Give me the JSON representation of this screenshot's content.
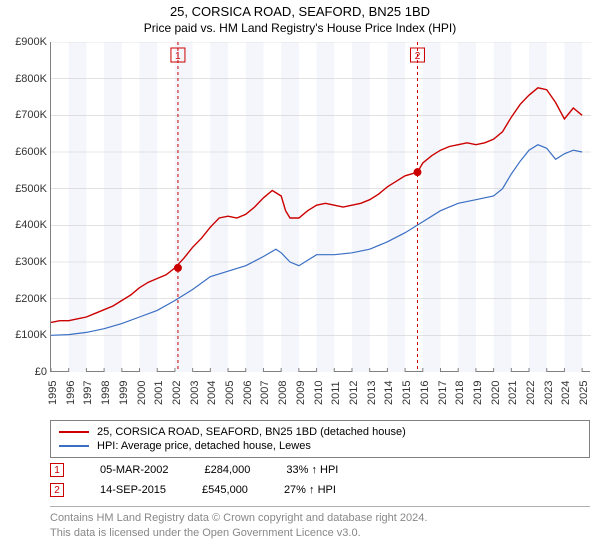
{
  "title": "25, CORSICA ROAD, SEAFORD, BN25 1BD",
  "subtitle": "Price paid vs. HM Land Registry's House Price Index (HPI)",
  "chart": {
    "type": "line",
    "background_color": "#ffffff",
    "alt_column_color": "#f4f6fb",
    "grid_color": "#d0d0d0",
    "axis_color": "#808080",
    "ylim": [
      0,
      900000
    ],
    "ytick_step": 100000,
    "ylabels": [
      "£0",
      "£100K",
      "£200K",
      "£300K",
      "£400K",
      "£500K",
      "£600K",
      "£700K",
      "£800K",
      "£900K"
    ],
    "xlim": [
      1995,
      2025.5
    ],
    "xticks": [
      1995,
      1996,
      1997,
      1998,
      1999,
      2000,
      2001,
      2002,
      2003,
      2004,
      2005,
      2006,
      2007,
      2008,
      2009,
      2010,
      2011,
      2012,
      2013,
      2014,
      2015,
      2016,
      2017,
      2018,
      2019,
      2020,
      2021,
      2022,
      2023,
      2024,
      2025
    ],
    "label_fontsize": 11,
    "title_fontsize": 13,
    "series": [
      {
        "name": "property",
        "label": "25, CORSICA ROAD, SEAFORD, BN25 1BD (detached house)",
        "color": "#cc0000",
        "line_width": 1.4,
        "data": [
          [
            1995,
            135000
          ],
          [
            1995.5,
            140000
          ],
          [
            1996,
            140000
          ],
          [
            1996.5,
            145000
          ],
          [
            1997,
            150000
          ],
          [
            1997.5,
            160000
          ],
          [
            1998,
            170000
          ],
          [
            1998.5,
            180000
          ],
          [
            1999,
            195000
          ],
          [
            1999.5,
            210000
          ],
          [
            2000,
            230000
          ],
          [
            2000.5,
            245000
          ],
          [
            2001,
            255000
          ],
          [
            2001.5,
            265000
          ],
          [
            2002,
            284000
          ],
          [
            2002.5,
            310000
          ],
          [
            2003,
            340000
          ],
          [
            2003.5,
            365000
          ],
          [
            2004,
            395000
          ],
          [
            2004.5,
            420000
          ],
          [
            2005,
            425000
          ],
          [
            2005.5,
            420000
          ],
          [
            2006,
            430000
          ],
          [
            2006.5,
            450000
          ],
          [
            2007,
            475000
          ],
          [
            2007.5,
            495000
          ],
          [
            2008,
            480000
          ],
          [
            2008.25,
            440000
          ],
          [
            2008.5,
            420000
          ],
          [
            2009,
            420000
          ],
          [
            2009.5,
            440000
          ],
          [
            2010,
            455000
          ],
          [
            2010.5,
            460000
          ],
          [
            2011,
            455000
          ],
          [
            2011.5,
            450000
          ],
          [
            2012,
            455000
          ],
          [
            2012.5,
            460000
          ],
          [
            2013,
            470000
          ],
          [
            2013.5,
            485000
          ],
          [
            2014,
            505000
          ],
          [
            2014.5,
            520000
          ],
          [
            2015,
            535000
          ],
          [
            2015.7,
            545000
          ],
          [
            2016,
            570000
          ],
          [
            2016.5,
            590000
          ],
          [
            2017,
            605000
          ],
          [
            2017.5,
            615000
          ],
          [
            2018,
            620000
          ],
          [
            2018.5,
            625000
          ],
          [
            2019,
            620000
          ],
          [
            2019.5,
            625000
          ],
          [
            2020,
            635000
          ],
          [
            2020.5,
            655000
          ],
          [
            2021,
            695000
          ],
          [
            2021.5,
            730000
          ],
          [
            2022,
            755000
          ],
          [
            2022.5,
            775000
          ],
          [
            2023,
            770000
          ],
          [
            2023.5,
            735000
          ],
          [
            2024,
            690000
          ],
          [
            2024.5,
            720000
          ],
          [
            2025,
            700000
          ]
        ]
      },
      {
        "name": "hpi",
        "label": "HPI: Average price, detached house, Lewes",
        "color": "#3a6fc4",
        "line_width": 1.2,
        "data": [
          [
            1995,
            100000
          ],
          [
            1996,
            102000
          ],
          [
            1997,
            108000
          ],
          [
            1998,
            118000
          ],
          [
            1999,
            132000
          ],
          [
            2000,
            150000
          ],
          [
            2001,
            168000
          ],
          [
            2002,
            195000
          ],
          [
            2003,
            225000
          ],
          [
            2004,
            260000
          ],
          [
            2005,
            275000
          ],
          [
            2006,
            290000
          ],
          [
            2007,
            315000
          ],
          [
            2007.7,
            335000
          ],
          [
            2008,
            325000
          ],
          [
            2008.5,
            300000
          ],
          [
            2009,
            290000
          ],
          [
            2009.5,
            305000
          ],
          [
            2010,
            320000
          ],
          [
            2011,
            320000
          ],
          [
            2012,
            325000
          ],
          [
            2013,
            335000
          ],
          [
            2014,
            355000
          ],
          [
            2015,
            380000
          ],
          [
            2016,
            410000
          ],
          [
            2017,
            440000
          ],
          [
            2018,
            460000
          ],
          [
            2019,
            470000
          ],
          [
            2020,
            480000
          ],
          [
            2020.5,
            500000
          ],
          [
            2021,
            540000
          ],
          [
            2021.5,
            575000
          ],
          [
            2022,
            605000
          ],
          [
            2022.5,
            620000
          ],
          [
            2023,
            610000
          ],
          [
            2023.5,
            580000
          ],
          [
            2024,
            595000
          ],
          [
            2024.5,
            605000
          ],
          [
            2025,
            600000
          ]
        ]
      }
    ],
    "markers": [
      {
        "id": "1",
        "year": 2002.17,
        "value": 284000,
        "color": "#cc0000",
        "label_y_offset": -40
      },
      {
        "id": "2",
        "year": 2015.7,
        "value": 545000,
        "color": "#cc0000",
        "label_y_offset": -35
      }
    ]
  },
  "sales": [
    {
      "id": "1",
      "date": "05-MAR-2002",
      "price": "£284,000",
      "delta": "33% ↑ HPI"
    },
    {
      "id": "2",
      "date": "14-SEP-2015",
      "price": "£545,000",
      "delta": "27% ↑ HPI"
    }
  ],
  "footer": {
    "line1": "Contains HM Land Registry data © Crown copyright and database right 2024.",
    "line2": "This data is licensed under the Open Government Licence v3.0."
  }
}
